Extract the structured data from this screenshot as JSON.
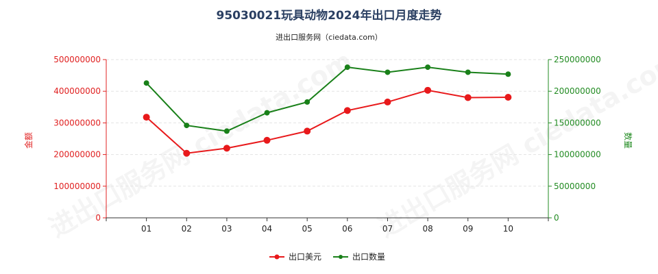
{
  "title": "95030021玩具动物2024年出口月度走势",
  "subtitle": "进出口服务网（ciedata.com）",
  "watermark": "进出口服务网 ciedata.com",
  "chart_data": {
    "type": "line",
    "categories": [
      "01",
      "02",
      "03",
      "04",
      "05",
      "06",
      "07",
      "08",
      "09",
      "10"
    ],
    "y_left": {
      "label": "金额",
      "ylim": [
        0,
        500000000
      ],
      "ticks": [
        "0",
        "100000000",
        "200000000",
        "300000000",
        "400000000",
        "500000000"
      ],
      "color": "#e02020"
    },
    "y_right": {
      "label": "数量",
      "ylim": [
        0,
        250000000
      ],
      "ticks": [
        "0",
        "50000000",
        "100000000",
        "150000000",
        "200000000",
        "250000000"
      ],
      "color": "#228b22"
    },
    "series": [
      {
        "name": "出口美元",
        "axis": "left",
        "color": "#e8191b",
        "values": [
          318000000,
          204000000,
          220000000,
          245000000,
          274000000,
          339000000,
          366000000,
          403000000,
          380000000,
          381000000
        ]
      },
      {
        "name": "出口数量",
        "axis": "right",
        "color": "#198019",
        "values": [
          213000000,
          146000000,
          137000000,
          166000000,
          183000000,
          238000000,
          230000000,
          238000000,
          230000000,
          227000000
        ]
      }
    ],
    "legend_position": "bottom-center"
  }
}
